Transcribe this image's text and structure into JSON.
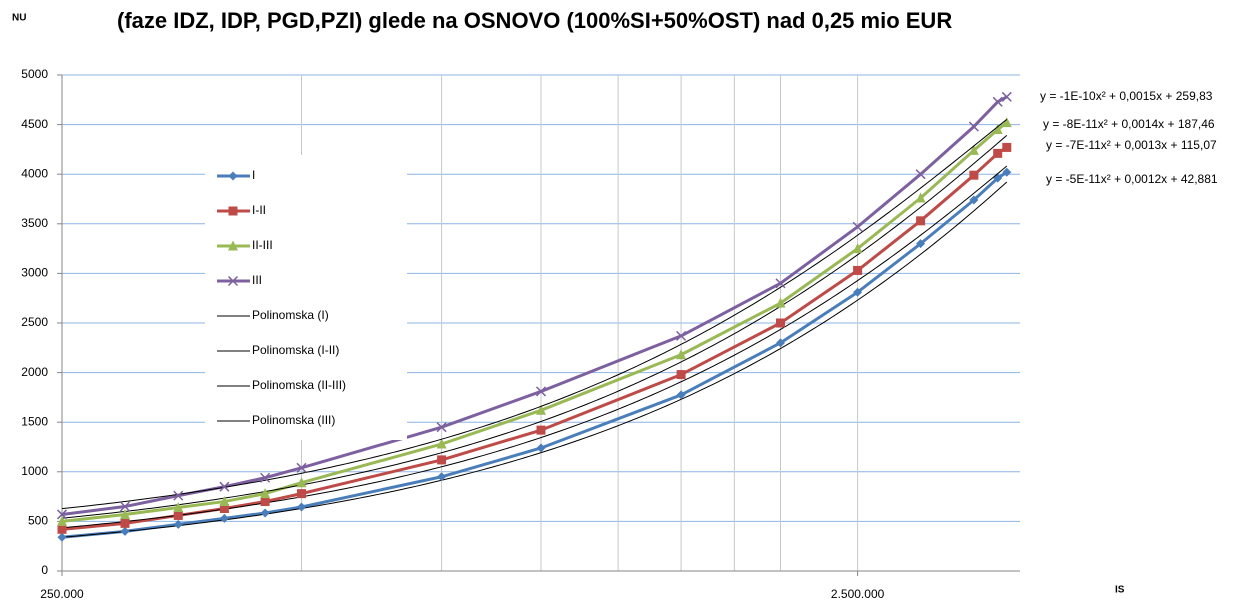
{
  "chart_data": {
    "type": "line",
    "title": "(faze IDZ, IDP, PGD,PZI) glede na OSNOVO (100%SI+50%OST) nad 0,25 mio EUR",
    "ylabel": "NU",
    "xlabel": "IS",
    "xscale": "log",
    "x": [
      250000,
      300000,
      350000,
      400000,
      450000,
      500000,
      750000,
      1000000,
      1500000,
      2000000,
      2500000,
      3000000,
      3500000,
      3750000,
      3850000
    ],
    "xlim": [
      250000,
      4000000
    ],
    "xticks": [
      {
        "value": 250000,
        "label": "250.000"
      },
      {
        "value": 2500000,
        "label": "2.500.000"
      }
    ],
    "xminorticks": [
      500000,
      750000,
      1000000,
      1250000,
      1500000,
      1750000,
      2000000
    ],
    "ylim": [
      0,
      5000
    ],
    "yticks": [
      0,
      500,
      1000,
      1500,
      2000,
      2500,
      3000,
      3500,
      4000,
      4500,
      5000
    ],
    "grid": true,
    "series": [
      {
        "name": "I",
        "color": "#4a7ebb",
        "marker": "diamond",
        "values": [
          340,
          400,
          470,
          530,
          585,
          645,
          950,
          1240,
          1775,
          2300,
          2810,
          3300,
          3740,
          3960,
          4020
        ],
        "trendline": {
          "name": "Polinomska (I)",
          "label": "y = -5E-11x² + 0,0012x + 42,881",
          "coefficients": [
            -5e-11,
            0.0012,
            42.881
          ]
        }
      },
      {
        "name": "I-II",
        "color": "#be4b48",
        "marker": "square",
        "values": [
          420,
          480,
          560,
          630,
          700,
          780,
          1120,
          1420,
          1980,
          2500,
          3030,
          3530,
          3990,
          4210,
          4270
        ],
        "trendline": {
          "name": "Polinomska (I-II)",
          "label": "y = -7E-11x² + 0,0013x + 115,07",
          "coefficients": [
            -7e-11,
            0.0013,
            115.07
          ]
        }
      },
      {
        "name": "II-III",
        "color": "#98b954",
        "marker": "triangle",
        "values": [
          500,
          570,
          640,
          700,
          780,
          890,
          1280,
          1620,
          2180,
          2700,
          3250,
          3760,
          4240,
          4450,
          4520
        ],
        "trendline": {
          "name": "Polinomska (II-III)",
          "label": "y = -8E-11x² + 0,0014x + 187,46",
          "coefficients": [
            -8e-11,
            0.0014,
            187.46
          ]
        }
      },
      {
        "name": "III",
        "color": "#7d60a0",
        "marker": "x",
        "values": [
          570,
          650,
          760,
          850,
          940,
          1040,
          1450,
          1810,
          2370,
          2900,
          3470,
          4000,
          4480,
          4730,
          4780
        ],
        "trendline": {
          "name": "Polinomska (III)",
          "label": "y = -1E-10x² + 0,0015x + 259,83",
          "coefficients": [
            -1e-10,
            0.0015,
            259.83
          ]
        }
      }
    ]
  }
}
